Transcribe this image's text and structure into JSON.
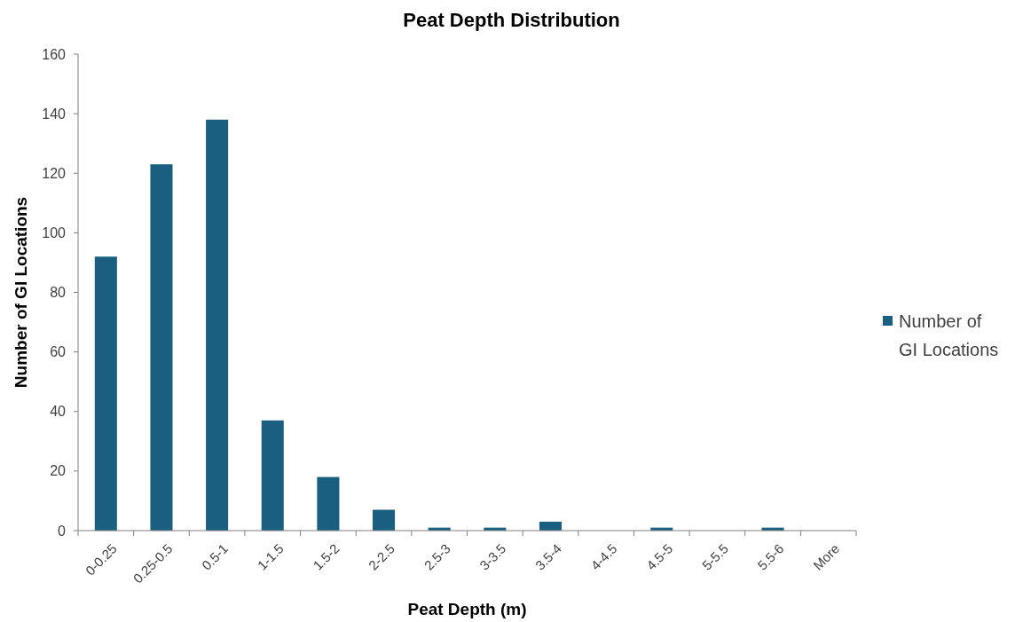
{
  "chart_data": {
    "type": "bar",
    "title": "Peat Depth Distribution",
    "xlabel": "Peat Depth (m)",
    "ylabel": "Number of GI Locations",
    "categories": [
      "0-0.25",
      "0.25-0.5",
      "0.5-1",
      "1-1.5",
      "1.5-2",
      "2-2.5",
      "2.5-3",
      "3-3.5",
      "3.5-4",
      "4-4.5",
      "4.5-5",
      "5-5.5",
      "5.5-6",
      "More"
    ],
    "series": [
      {
        "name": "Number of GI Locations",
        "color": "#1a5f80",
        "values": [
          92,
          123,
          138,
          37,
          18,
          7,
          1,
          1,
          3,
          0,
          1,
          0,
          1,
          0
        ]
      }
    ],
    "ylim": [
      0,
      160
    ],
    "yticks": [
      0,
      20,
      40,
      60,
      80,
      100,
      120,
      140,
      160
    ],
    "grid": false,
    "legend": "right"
  }
}
